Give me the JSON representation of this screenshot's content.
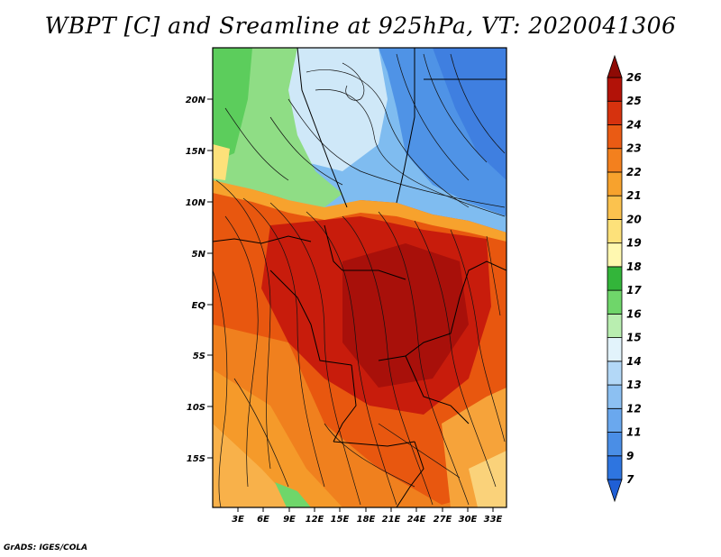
{
  "title": "WBPT [C] and Sreamline at 925hPa, VT: 2020041306",
  "credit": "GrADS: IGES/COLA",
  "map": {
    "lat_labels": [
      "20N",
      "15N",
      "10N",
      "5N",
      "EQ",
      "5S",
      "10S",
      "15S"
    ],
    "lon_labels": [
      "3E",
      "6E",
      "9E",
      "12E",
      "15E",
      "18E",
      "21E",
      "24E",
      "27E",
      "30E",
      "33E"
    ],
    "lon_range": [
      0,
      34.5
    ],
    "lat_range": [
      -20,
      24
    ]
  },
  "colorbar": {
    "labels": [
      "7",
      "9",
      "11",
      "12",
      "13",
      "14",
      "15",
      "16",
      "17",
      "18",
      "19",
      "20",
      "21",
      "22",
      "23",
      "24",
      "25",
      "26"
    ],
    "colors": [
      "#1f5fd6",
      "#2e75e0",
      "#4a8ee6",
      "#6aa8ee",
      "#8cc0f2",
      "#b3d8f7",
      "#e2f3fb",
      "#b9eeb0",
      "#6fd66a",
      "#33b53a",
      "#fff8b0",
      "#fde17a",
      "#fbc24e",
      "#f7a22d",
      "#f3801e",
      "#ea5b14",
      "#d6320e",
      "#b21208",
      "#8e0a05"
    ]
  }
}
